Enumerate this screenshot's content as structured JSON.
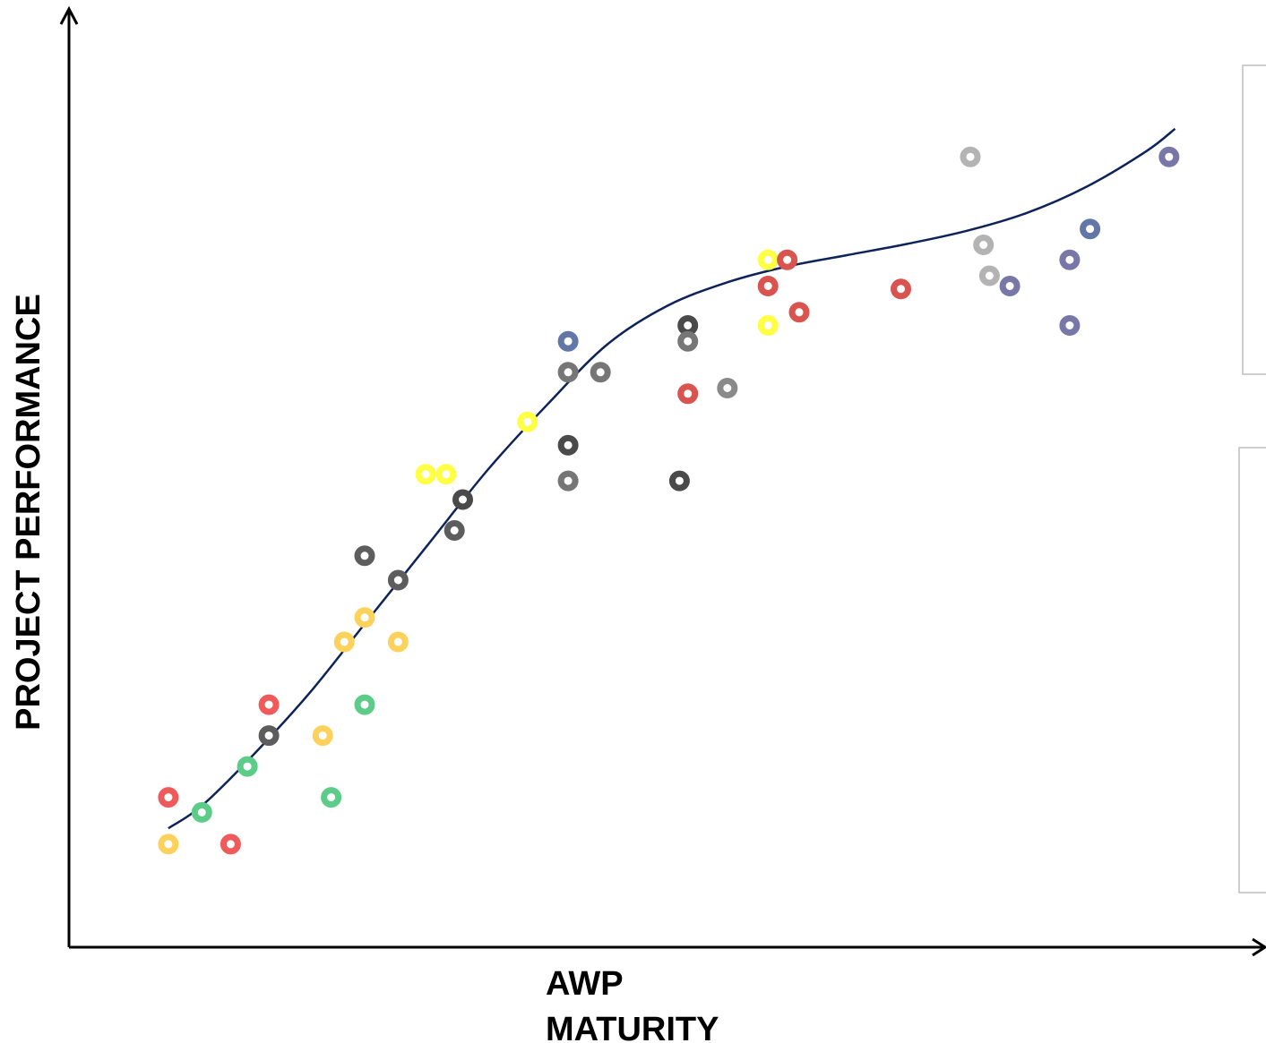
{
  "chart_data": {
    "type": "scatter",
    "title": "",
    "xlabel_lines": [
      "AWP",
      "MATURITY"
    ],
    "ylabel": "PROJECT PERFORMANCE",
    "xlim": [
      0,
      100
    ],
    "ylim": [
      0,
      100
    ],
    "grid": false,
    "legend": "none",
    "trend_line_color": "#0d2359",
    "trend_line": [
      [
        8.3,
        12.7
      ],
      [
        11,
        15
      ],
      [
        15,
        20
      ],
      [
        20,
        27
      ],
      [
        25,
        35
      ],
      [
        30,
        43
      ],
      [
        35,
        51
      ],
      [
        40,
        58
      ],
      [
        45,
        64.4
      ],
      [
        50,
        68.5
      ],
      [
        55,
        71
      ],
      [
        60,
        72.7
      ],
      [
        65,
        73.9
      ],
      [
        70,
        75.1
      ],
      [
        75,
        76.5
      ],
      [
        80,
        78.4
      ],
      [
        85,
        81.2
      ],
      [
        90,
        85
      ],
      [
        92.4,
        87.4
      ]
    ],
    "points": [
      {
        "x": 8.3,
        "y": 16.0,
        "color": "#ef5b5b"
      },
      {
        "x": 8.3,
        "y": 11.0,
        "color": "#fdd25c"
      },
      {
        "x": 11.1,
        "y": 14.4,
        "color": "#5ccc88"
      },
      {
        "x": 13.5,
        "y": 11.0,
        "color": "#ef5b5b"
      },
      {
        "x": 14.9,
        "y": 19.3,
        "color": "#5ccc88"
      },
      {
        "x": 16.7,
        "y": 22.6,
        "color": "#5d5d5d"
      },
      {
        "x": 16.7,
        "y": 25.9,
        "color": "#ef5b5b"
      },
      {
        "x": 21.9,
        "y": 16.0,
        "color": "#5ccc88"
      },
      {
        "x": 21.2,
        "y": 22.6,
        "color": "#fdd25c"
      },
      {
        "x": 23.0,
        "y": 32.6,
        "color": "#fdd25c"
      },
      {
        "x": 24.7,
        "y": 35.2,
        "color": "#fdd25c"
      },
      {
        "x": 24.7,
        "y": 25.9,
        "color": "#5ccc88"
      },
      {
        "x": 24.7,
        "y": 41.8,
        "color": "#5d5d5d"
      },
      {
        "x": 27.5,
        "y": 39.2,
        "color": "#5d5d5d"
      },
      {
        "x": 27.5,
        "y": 32.6,
        "color": "#fdd25c"
      },
      {
        "x": 29.8,
        "y": 50.5,
        "color": "#ffff44"
      },
      {
        "x": 31.5,
        "y": 50.5,
        "color": "#ffff44"
      },
      {
        "x": 32.2,
        "y": 44.5,
        "color": "#5d5d5d"
      },
      {
        "x": 32.9,
        "y": 47.8,
        "color": "#4a4a4a"
      },
      {
        "x": 38.3,
        "y": 56.1,
        "color": "#ffff44"
      },
      {
        "x": 41.7,
        "y": 64.7,
        "color": "#6376a8"
      },
      {
        "x": 41.7,
        "y": 61.4,
        "color": "#767676"
      },
      {
        "x": 44.4,
        "y": 61.4,
        "color": "#767676"
      },
      {
        "x": 41.7,
        "y": 53.6,
        "color": "#4a4a4a"
      },
      {
        "x": 41.7,
        "y": 49.8,
        "color": "#767676"
      },
      {
        "x": 51.0,
        "y": 49.8,
        "color": "#4a4a4a"
      },
      {
        "x": 51.7,
        "y": 66.4,
        "color": "#4a4a4a"
      },
      {
        "x": 51.7,
        "y": 64.7,
        "color": "#767676"
      },
      {
        "x": 51.7,
        "y": 59.1,
        "color": "#d9534f"
      },
      {
        "x": 55.0,
        "y": 59.7,
        "color": "#8a8a8a"
      },
      {
        "x": 58.4,
        "y": 73.4,
        "color": "#ffff44"
      },
      {
        "x": 60.0,
        "y": 73.4,
        "color": "#d9534f"
      },
      {
        "x": 58.4,
        "y": 70.6,
        "color": "#d9534f"
      },
      {
        "x": 58.4,
        "y": 66.4,
        "color": "#ffff44"
      },
      {
        "x": 61.0,
        "y": 67.8,
        "color": "#d9534f"
      },
      {
        "x": 69.5,
        "y": 70.3,
        "color": "#d9534f"
      },
      {
        "x": 75.3,
        "y": 84.4,
        "color": "#b3b3b3"
      },
      {
        "x": 76.4,
        "y": 75.0,
        "color": "#b3b3b3"
      },
      {
        "x": 76.9,
        "y": 71.7,
        "color": "#b3b3b3"
      },
      {
        "x": 78.6,
        "y": 70.6,
        "color": "#7878a8"
      },
      {
        "x": 83.6,
        "y": 73.4,
        "color": "#7878a8"
      },
      {
        "x": 83.6,
        "y": 66.4,
        "color": "#7878a8"
      },
      {
        "x": 85.3,
        "y": 76.7,
        "color": "#6376a8"
      },
      {
        "x": 91.9,
        "y": 84.4,
        "color": "#7878a8"
      }
    ]
  }
}
